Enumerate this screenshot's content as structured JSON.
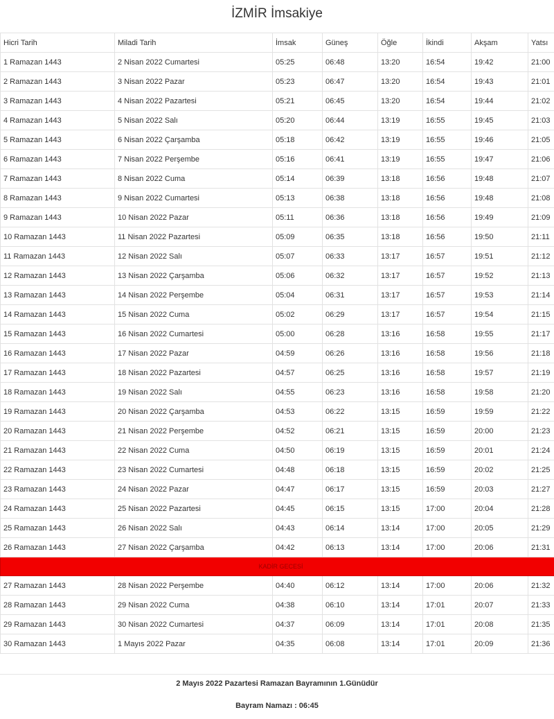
{
  "title": "İZMİR İmsakiye",
  "headers": [
    "Hicri Tarih",
    "Miladi Tarih",
    "İmsak",
    "Güneş",
    "Öğle",
    "İkindi",
    "Akşam",
    "Yatsı"
  ],
  "rows_before": [
    [
      "1 Ramazan 1443",
      "2 Nisan 2022 Cumartesi",
      "05:25",
      "06:48",
      "13:20",
      "16:54",
      "19:42",
      "21:00"
    ],
    [
      "2 Ramazan 1443",
      "3 Nisan 2022 Pazar",
      "05:23",
      "06:47",
      "13:20",
      "16:54",
      "19:43",
      "21:01"
    ],
    [
      "3 Ramazan 1443",
      "4 Nisan 2022 Pazartesi",
      "05:21",
      "06:45",
      "13:20",
      "16:54",
      "19:44",
      "21:02"
    ],
    [
      "4 Ramazan 1443",
      "5 Nisan 2022 Salı",
      "05:20",
      "06:44",
      "13:19",
      "16:55",
      "19:45",
      "21:03"
    ],
    [
      "5 Ramazan 1443",
      "6 Nisan 2022 Çarşamba",
      "05:18",
      "06:42",
      "13:19",
      "16:55",
      "19:46",
      "21:05"
    ],
    [
      "6 Ramazan 1443",
      "7 Nisan 2022 Perşembe",
      "05:16",
      "06:41",
      "13:19",
      "16:55",
      "19:47",
      "21:06"
    ],
    [
      "7 Ramazan 1443",
      "8 Nisan 2022 Cuma",
      "05:14",
      "06:39",
      "13:18",
      "16:56",
      "19:48",
      "21:07"
    ],
    [
      "8 Ramazan 1443",
      "9 Nisan 2022 Cumartesi",
      "05:13",
      "06:38",
      "13:18",
      "16:56",
      "19:48",
      "21:08"
    ],
    [
      "9 Ramazan 1443",
      "10 Nisan 2022 Pazar",
      "05:11",
      "06:36",
      "13:18",
      "16:56",
      "19:49",
      "21:09"
    ],
    [
      "10 Ramazan 1443",
      "11 Nisan 2022 Pazartesi",
      "05:09",
      "06:35",
      "13:18",
      "16:56",
      "19:50",
      "21:11"
    ],
    [
      "11 Ramazan 1443",
      "12 Nisan 2022 Salı",
      "05:07",
      "06:33",
      "13:17",
      "16:57",
      "19:51",
      "21:12"
    ],
    [
      "12 Ramazan 1443",
      "13 Nisan 2022 Çarşamba",
      "05:06",
      "06:32",
      "13:17",
      "16:57",
      "19:52",
      "21:13"
    ],
    [
      "13 Ramazan 1443",
      "14 Nisan 2022 Perşembe",
      "05:04",
      "06:31",
      "13:17",
      "16:57",
      "19:53",
      "21:14"
    ],
    [
      "14 Ramazan 1443",
      "15 Nisan 2022 Cuma",
      "05:02",
      "06:29",
      "13:17",
      "16:57",
      "19:54",
      "21:15"
    ],
    [
      "15 Ramazan 1443",
      "16 Nisan 2022 Cumartesi",
      "05:00",
      "06:28",
      "13:16",
      "16:58",
      "19:55",
      "21:17"
    ],
    [
      "16 Ramazan 1443",
      "17 Nisan 2022 Pazar",
      "04:59",
      "06:26",
      "13:16",
      "16:58",
      "19:56",
      "21:18"
    ],
    [
      "17 Ramazan 1443",
      "18 Nisan 2022 Pazartesi",
      "04:57",
      "06:25",
      "13:16",
      "16:58",
      "19:57",
      "21:19"
    ],
    [
      "18 Ramazan 1443",
      "19 Nisan 2022 Salı",
      "04:55",
      "06:23",
      "13:16",
      "16:58",
      "19:58",
      "21:20"
    ],
    [
      "19 Ramazan 1443",
      "20 Nisan 2022 Çarşamba",
      "04:53",
      "06:22",
      "13:15",
      "16:59",
      "19:59",
      "21:22"
    ],
    [
      "20 Ramazan 1443",
      "21 Nisan 2022 Perşembe",
      "04:52",
      "06:21",
      "13:15",
      "16:59",
      "20:00",
      "21:23"
    ],
    [
      "21 Ramazan 1443",
      "22 Nisan 2022 Cuma",
      "04:50",
      "06:19",
      "13:15",
      "16:59",
      "20:01",
      "21:24"
    ],
    [
      "22 Ramazan 1443",
      "23 Nisan 2022 Cumartesi",
      "04:48",
      "06:18",
      "13:15",
      "16:59",
      "20:02",
      "21:25"
    ],
    [
      "23 Ramazan 1443",
      "24 Nisan 2022 Pazar",
      "04:47",
      "06:17",
      "13:15",
      "16:59",
      "20:03",
      "21:27"
    ],
    [
      "24 Ramazan 1443",
      "25 Nisan 2022 Pazartesi",
      "04:45",
      "06:15",
      "13:15",
      "17:00",
      "20:04",
      "21:28"
    ],
    [
      "25 Ramazan 1443",
      "26 Nisan 2022 Salı",
      "04:43",
      "06:14",
      "13:14",
      "17:00",
      "20:05",
      "21:29"
    ],
    [
      "26 Ramazan 1443",
      "27 Nisan 2022 Çarşamba",
      "04:42",
      "06:13",
      "13:14",
      "17:00",
      "20:06",
      "21:31"
    ]
  ],
  "kadir_label": "KADİR GECESİ",
  "kadir_color": "#f20000",
  "rows_after": [
    [
      "27 Ramazan 1443",
      "28 Nisan 2022 Perşembe",
      "04:40",
      "06:12",
      "13:14",
      "17:00",
      "20:06",
      "21:32"
    ],
    [
      "28 Ramazan 1443",
      "29 Nisan 2022 Cuma",
      "04:38",
      "06:10",
      "13:14",
      "17:01",
      "20:07",
      "21:33"
    ],
    [
      "29 Ramazan 1443",
      "30 Nisan 2022 Cumartesi",
      "04:37",
      "06:09",
      "13:14",
      "17:01",
      "20:08",
      "21:35"
    ],
    [
      "30 Ramazan 1443",
      "1 Mayıs 2022 Pazar",
      "04:35",
      "06:08",
      "13:14",
      "17:01",
      "20:09",
      "21:36"
    ]
  ],
  "footer": {
    "bayram_note": "2 Mayıs 2022 Pazartesi Ramazan Bayramının 1.Günüdür",
    "bayram_namazi": "Bayram Namazı : 06:45"
  }
}
